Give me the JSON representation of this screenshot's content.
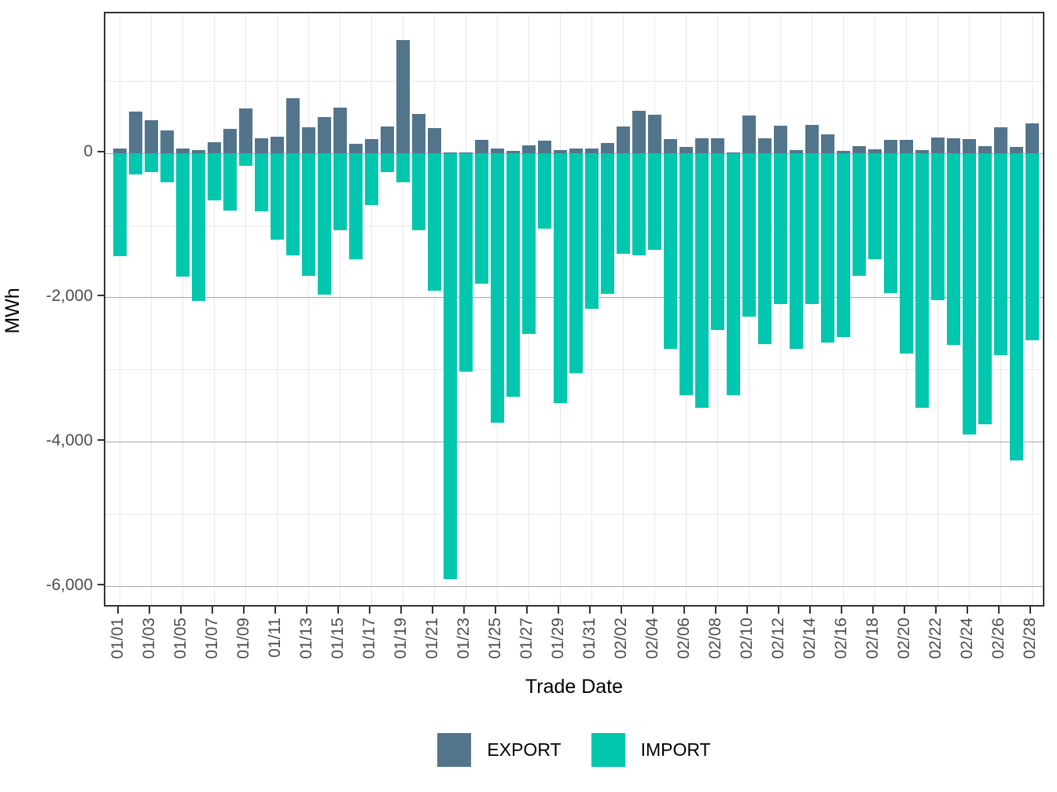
{
  "chart_data": {
    "type": "bar",
    "title": "",
    "xlabel": "Trade Date",
    "ylabel": "MWh",
    "legend_position": "bottom",
    "grid": true,
    "ylim": [
      -6300,
      1930
    ],
    "y_major_ticks": [
      {
        "value": 0,
        "label": "0"
      },
      {
        "value": -2000,
        "label": "-2,000"
      },
      {
        "value": -4000,
        "label": "-4,000"
      },
      {
        "value": -6000,
        "label": "-6,000"
      }
    ],
    "y_minor_ticks": [
      1000,
      -1000,
      -3000,
      -5000
    ],
    "x_label_every": 2,
    "categories": [
      "01/01",
      "01/02",
      "01/03",
      "01/04",
      "01/05",
      "01/06",
      "01/07",
      "01/08",
      "01/09",
      "01/10",
      "01/11",
      "01/12",
      "01/13",
      "01/14",
      "01/15",
      "01/16",
      "01/17",
      "01/18",
      "01/19",
      "01/20",
      "01/21",
      "01/22",
      "01/23",
      "01/24",
      "01/25",
      "01/26",
      "01/27",
      "01/28",
      "01/29",
      "01/30",
      "01/31",
      "02/01",
      "02/02",
      "02/03",
      "02/04",
      "02/05",
      "02/06",
      "02/07",
      "02/08",
      "02/09",
      "02/10",
      "02/11",
      "02/12",
      "02/13",
      "02/14",
      "02/15",
      "02/16",
      "02/17",
      "02/18",
      "02/19",
      "02/20",
      "02/21",
      "02/22",
      "02/23",
      "02/24",
      "02/25",
      "02/26",
      "02/27",
      "02/28"
    ],
    "series": [
      {
        "name": "EXPORT",
        "color": "#53758b",
        "values": [
          62,
          568,
          452,
          315,
          62,
          33,
          145,
          333,
          615,
          203,
          228,
          760,
          351,
          496,
          622,
          127,
          188,
          369,
          1557,
          543,
          342,
          5,
          8,
          178,
          58,
          22,
          104,
          170,
          43,
          62,
          62,
          134,
          369,
          587,
          529,
          188,
          80,
          206,
          200,
          5,
          516,
          203,
          379,
          40,
          390,
          261,
          25,
          98,
          51,
          181,
          181,
          43,
          217,
          206,
          188,
          98,
          351,
          87,
          413
        ]
      },
      {
        "name": "IMPORT",
        "color": "#00c7ae",
        "values": [
          -1426,
          -295,
          -262,
          -408,
          -1709,
          -2050,
          -657,
          -803,
          -179,
          -815,
          -1198,
          -1414,
          -1696,
          -1967,
          -1073,
          -1468,
          -719,
          -270,
          -408,
          -1073,
          -1904,
          -5897,
          -3027,
          -1813,
          -3734,
          -3380,
          -2507,
          -1052,
          -3464,
          -3048,
          -2154,
          -1946,
          -1397,
          -1414,
          -1343,
          -2715,
          -3359,
          -3526,
          -2453,
          -3351,
          -2270,
          -2644,
          -2091,
          -2715,
          -2091,
          -2623,
          -2549,
          -1696,
          -1468,
          -1937,
          -2777,
          -3526,
          -2037,
          -2661,
          -3892,
          -3755,
          -2798,
          -4254,
          -2590
        ]
      }
    ]
  },
  "legend": {
    "export_label": "EXPORT",
    "import_label": "IMPORT"
  },
  "colors": {
    "export": "#53758b",
    "import": "#00c7ae",
    "grid_major": "#a8a8a8",
    "grid_minor": "#e9e9e9",
    "axis_text": "#4d4d4d",
    "panel_border": "#333333"
  }
}
